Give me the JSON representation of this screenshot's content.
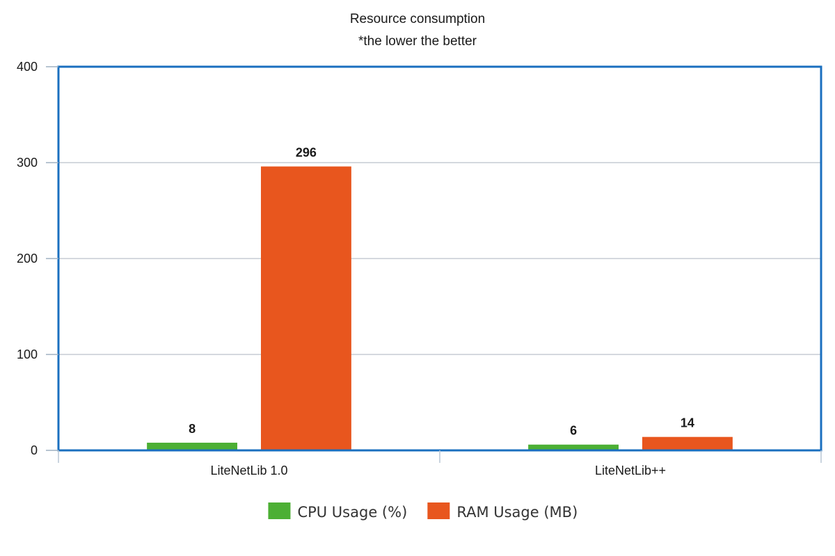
{
  "chart_data": {
    "type": "bar",
    "title": "Resource consumption",
    "subtitle": "*the lower the better",
    "categories": [
      "LiteNetLib 1.0",
      "LiteNetLib++"
    ],
    "series": [
      {
        "name": "CPU Usage (%)",
        "color": "#4caf34",
        "values": [
          8,
          6
        ]
      },
      {
        "name": "RAM Usage (MB)",
        "color": "#e8561e",
        "values": [
          296,
          14
        ]
      }
    ],
    "ylim": [
      0,
      400
    ],
    "yticks": [
      0,
      100,
      200,
      300,
      400
    ],
    "xlabel": "",
    "ylabel": "",
    "grid": true,
    "legend": "bottom-center",
    "frame_color": "#1a6fbf",
    "grid_color": "#c5ccd3"
  }
}
